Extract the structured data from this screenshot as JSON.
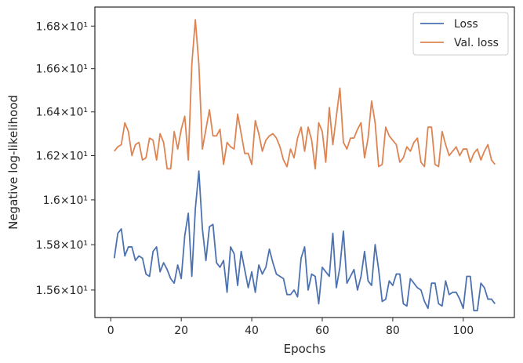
{
  "chart_data": {
    "type": "line",
    "title": "",
    "xlabel": "Epochs",
    "ylabel": "Negative log-likelihood",
    "xlim": [
      -4.5,
      114.5
    ],
    "ylim": [
      15.48,
      16.89
    ],
    "yscale": "log",
    "grid": false,
    "legend_position": "top-right",
    "x_ticks": [
      0,
      20,
      40,
      60,
      80,
      100
    ],
    "x_tick_labels": [
      "0",
      "20",
      "40",
      "60",
      "80",
      "100"
    ],
    "y_ticks": [
      15.6,
      15.8,
      16.0,
      16.2,
      16.4,
      16.6,
      16.8
    ],
    "y_tick_labels": [
      "1.56×10¹",
      "1.58×10¹",
      "1.6×10¹",
      "1.62×10¹",
      "1.64×10¹",
      "1.66×10¹",
      "1.68×10¹"
    ],
    "series": [
      {
        "name": "Loss",
        "color": "#4c72b0",
        "values": [
          15.74,
          15.85,
          15.87,
          15.75,
          15.79,
          15.79,
          15.73,
          15.75,
          15.74,
          15.67,
          15.66,
          15.77,
          15.79,
          15.68,
          15.72,
          15.69,
          15.65,
          15.63,
          15.71,
          15.65,
          15.84,
          15.94,
          15.66,
          15.96,
          16.13,
          15.87,
          15.73,
          15.88,
          15.89,
          15.72,
          15.7,
          15.73,
          15.59,
          15.79,
          15.76,
          15.62,
          15.77,
          15.69,
          15.61,
          15.68,
          15.59,
          15.71,
          15.67,
          15.7,
          15.78,
          15.72,
          15.67,
          15.66,
          15.65,
          15.58,
          15.58,
          15.6,
          15.57,
          15.74,
          15.79,
          15.6,
          15.67,
          15.66,
          15.54,
          15.7,
          15.68,
          15.66,
          15.85,
          15.61,
          15.7,
          15.86,
          15.63,
          15.66,
          15.69,
          15.6,
          15.66,
          15.77,
          15.64,
          15.62,
          15.8,
          15.69,
          15.55,
          15.56,
          15.64,
          15.62,
          15.67,
          15.67,
          15.54,
          15.53,
          15.65,
          15.63,
          15.61,
          15.6,
          15.55,
          15.52,
          15.63,
          15.63,
          15.54,
          15.53,
          15.64,
          15.58,
          15.59,
          15.59,
          15.56,
          15.52,
          15.66,
          15.66,
          15.51,
          15.51,
          15.63,
          15.61,
          15.56,
          15.56,
          15.54
        ]
      },
      {
        "name": "Val. loss",
        "color": "#dd8452",
        "values": [
          16.22,
          16.24,
          16.25,
          16.35,
          16.31,
          16.2,
          16.25,
          16.26,
          16.18,
          16.19,
          16.28,
          16.27,
          16.18,
          16.3,
          16.26,
          16.14,
          16.14,
          16.31,
          16.23,
          16.32,
          16.38,
          16.18,
          16.62,
          16.83,
          16.62,
          16.23,
          16.32,
          16.41,
          16.29,
          16.29,
          16.32,
          16.16,
          16.26,
          16.24,
          16.23,
          16.39,
          16.3,
          16.21,
          16.21,
          16.16,
          16.36,
          16.3,
          16.22,
          16.27,
          16.29,
          16.3,
          16.28,
          16.24,
          16.18,
          16.15,
          16.23,
          16.19,
          16.28,
          16.33,
          16.22,
          16.33,
          16.27,
          16.14,
          16.35,
          16.31,
          16.17,
          16.42,
          16.25,
          16.38,
          16.51,
          16.26,
          16.23,
          16.28,
          16.28,
          16.32,
          16.35,
          16.19,
          16.28,
          16.45,
          16.35,
          16.15,
          16.16,
          16.33,
          16.29,
          16.27,
          16.25,
          16.17,
          16.19,
          16.24,
          16.22,
          16.26,
          16.28,
          16.17,
          16.15,
          16.33,
          16.33,
          16.16,
          16.15,
          16.31,
          16.25,
          16.2,
          16.22,
          16.24,
          16.2,
          16.23,
          16.23,
          16.17,
          16.21,
          16.23,
          16.18,
          16.22,
          16.25,
          16.18,
          16.16
        ]
      }
    ]
  }
}
